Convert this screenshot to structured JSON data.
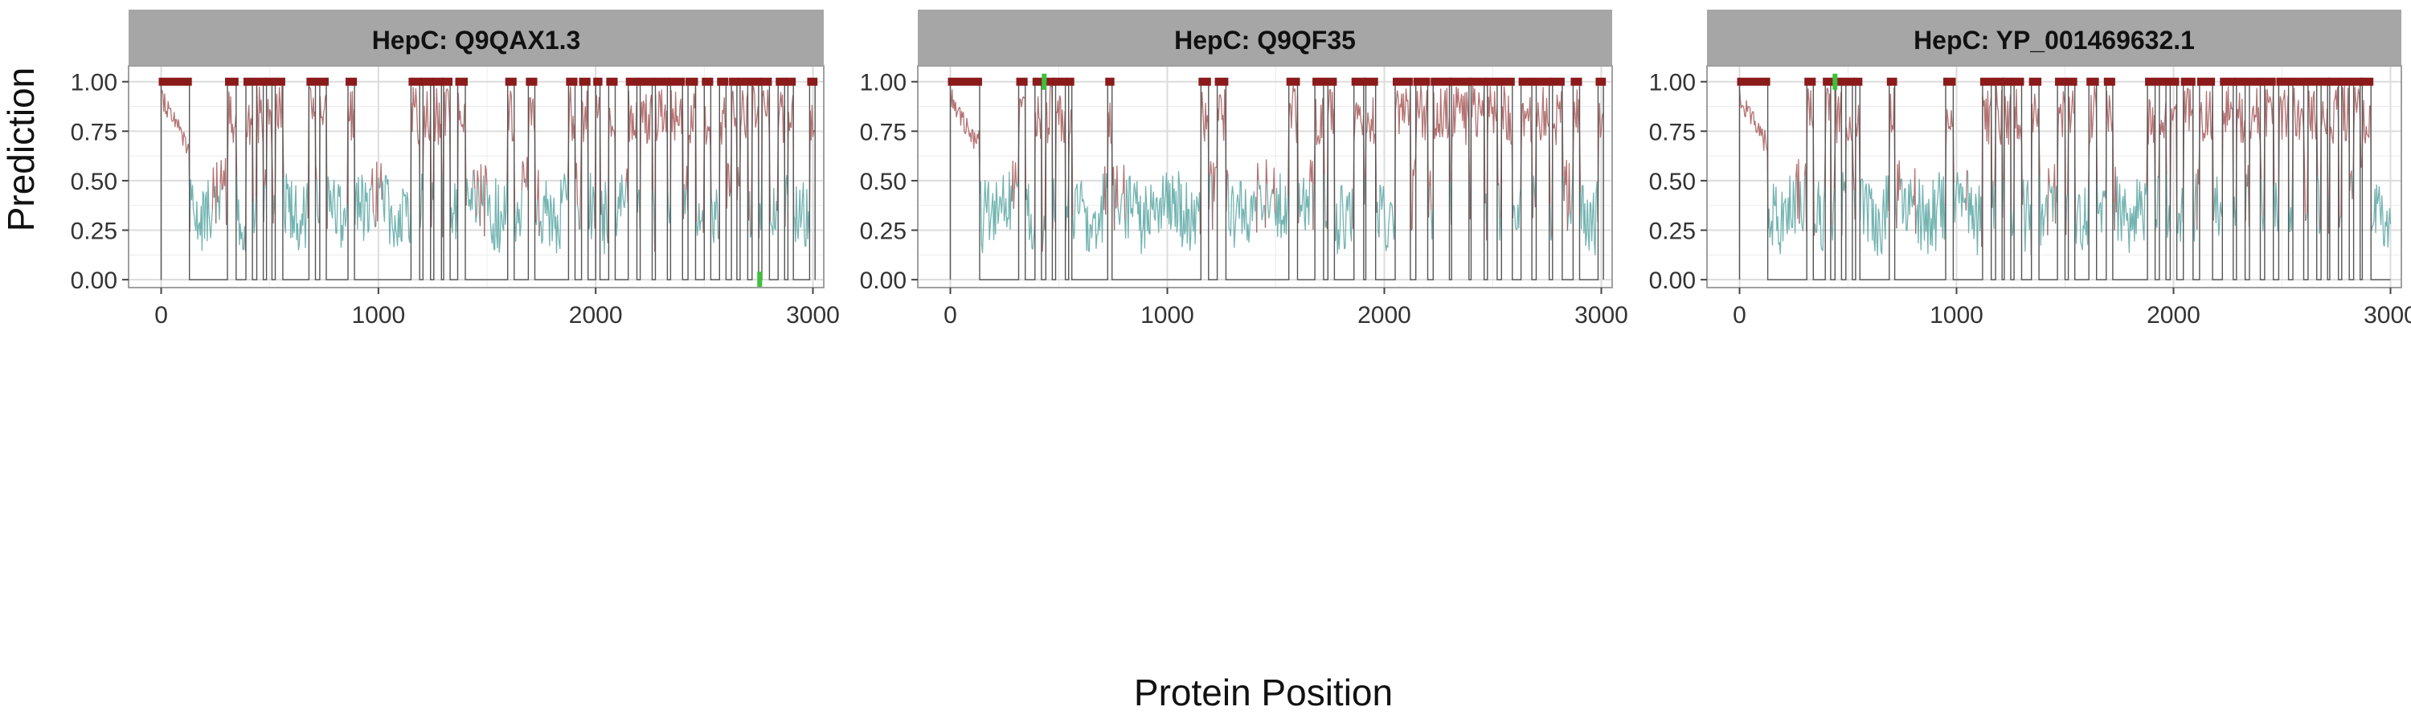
{
  "figure": {
    "ylabel": "Prediction",
    "xlabel": "Protein Position"
  },
  "colors": {
    "strip_bg": "#a6a6a6",
    "panel_border": "#a0a0a0",
    "grid": "#dcdcdc",
    "high_pred": "#a85a5a",
    "low_pred": "#5aa7a3",
    "epitope_marker": "#8b1a1a",
    "binary_trace": "#555555",
    "validated_marker": "#3cc13c",
    "text": "#222222"
  },
  "chart_data": [
    {
      "type": "line",
      "title": "HepC: Q9QAX1.3",
      "xlabel": "Protein Position",
      "ylabel": "Prediction",
      "xlim": [
        -150,
        3050
      ],
      "ylim": [
        -0.04,
        1.08
      ],
      "xticks": [
        0,
        1000,
        2000,
        3000
      ],
      "xtick_labels": [
        "0",
        "1000",
        "2000",
        "3000"
      ],
      "yticks": [
        0,
        0.25,
        0.5,
        0.75,
        1
      ],
      "ytick_labels": [
        "0.00",
        "0.25",
        "0.50",
        "0.75",
        "1.00"
      ],
      "grid": true,
      "sequence_length": 3010,
      "predicted_epitopes": [
        [
          0,
          130
        ],
        [
          305,
          345
        ],
        [
          390,
          420
        ],
        [
          440,
          470
        ],
        [
          485,
          510
        ],
        [
          525,
          560
        ],
        [
          680,
          710
        ],
        [
          730,
          760
        ],
        [
          860,
          890
        ],
        [
          1150,
          1190
        ],
        [
          1205,
          1240
        ],
        [
          1255,
          1290
        ],
        [
          1300,
          1330
        ],
        [
          1365,
          1400
        ],
        [
          1595,
          1625
        ],
        [
          1690,
          1720
        ],
        [
          1875,
          1905
        ],
        [
          1935,
          1965
        ],
        [
          2000,
          2020
        ],
        [
          2060,
          2090
        ],
        [
          2150,
          2190
        ],
        [
          2205,
          2260
        ],
        [
          2275,
          2330
        ],
        [
          2345,
          2400
        ],
        [
          2425,
          2460
        ],
        [
          2500,
          2530
        ],
        [
          2570,
          2600
        ],
        [
          2625,
          2650
        ],
        [
          2665,
          2700
        ],
        [
          2720,
          2750
        ],
        [
          2765,
          2800
        ],
        [
          2840,
          2870
        ],
        [
          2885,
          2910
        ],
        [
          2985,
          3010
        ]
      ],
      "validated_epitopes": [
        [
          2745,
          2765
        ]
      ]
    },
    {
      "type": "line",
      "title": "HepC: Q9QF35",
      "xlabel": "Protein Position",
      "ylabel": "Prediction",
      "xlim": [
        -150,
        3050
      ],
      "ylim": [
        -0.04,
        1.08
      ],
      "xticks": [
        0,
        1000,
        2000,
        3000
      ],
      "xtick_labels": [
        "0",
        "1000",
        "2000",
        "3000"
      ],
      "yticks": [
        0,
        0.25,
        0.5,
        0.75,
        1
      ],
      "ytick_labels": [
        "0.00",
        "0.25",
        "0.50",
        "0.75",
        "1.00"
      ],
      "grid": true,
      "sequence_length": 3010,
      "predicted_epitopes": [
        [
          0,
          135
        ],
        [
          315,
          345
        ],
        [
          390,
          420
        ],
        [
          440,
          470
        ],
        [
          485,
          530
        ],
        [
          545,
          560
        ],
        [
          725,
          745
        ],
        [
          1155,
          1190
        ],
        [
          1230,
          1270
        ],
        [
          1560,
          1600
        ],
        [
          1680,
          1720
        ],
        [
          1740,
          1770
        ],
        [
          1860,
          1905
        ],
        [
          1915,
          1960
        ],
        [
          2050,
          2120
        ],
        [
          2145,
          2200
        ],
        [
          2225,
          2300
        ],
        [
          2310,
          2390
        ],
        [
          2400,
          2460
        ],
        [
          2475,
          2520
        ],
        [
          2540,
          2590
        ],
        [
          2630,
          2680
        ],
        [
          2700,
          2760
        ],
        [
          2775,
          2820
        ],
        [
          2870,
          2900
        ],
        [
          2985,
          3010
        ]
      ],
      "validated_epitopes": [
        [
          420,
          445
        ]
      ]
    },
    {
      "type": "line",
      "title": "HepC: YP_001469632.1",
      "xlabel": "Protein Position",
      "ylabel": "Prediction",
      "xlim": [
        -150,
        3050
      ],
      "ylim": [
        -0.04,
        1.08
      ],
      "xticks": [
        0,
        1000,
        2000,
        3000
      ],
      "xtick_labels": [
        "0",
        "1000",
        "2000",
        "3000"
      ],
      "yticks": [
        0,
        0.25,
        0.5,
        0.75,
        1
      ],
      "ytick_labels": [
        "0.00",
        "0.25",
        "0.50",
        "0.75",
        "1.00"
      ],
      "grid": true,
      "sequence_length": 3000,
      "predicted_epitopes": [
        [
          0,
          130
        ],
        [
          310,
          340
        ],
        [
          395,
          420
        ],
        [
          440,
          470
        ],
        [
          490,
          520
        ],
        [
          535,
          555
        ],
        [
          690,
          715
        ],
        [
          950,
          985
        ],
        [
          1120,
          1160
        ],
        [
          1180,
          1210
        ],
        [
          1220,
          1250
        ],
        [
          1265,
          1300
        ],
        [
          1345,
          1380
        ],
        [
          1465,
          1500
        ],
        [
          1515,
          1545
        ],
        [
          1610,
          1645
        ],
        [
          1690,
          1720
        ],
        [
          1880,
          1915
        ],
        [
          1935,
          1965
        ],
        [
          1985,
          2015
        ],
        [
          2045,
          2090
        ],
        [
          2120,
          2180
        ],
        [
          2225,
          2275
        ],
        [
          2290,
          2330
        ],
        [
          2350,
          2400
        ],
        [
          2420,
          2460
        ],
        [
          2485,
          2530
        ],
        [
          2550,
          2600
        ],
        [
          2620,
          2660
        ],
        [
          2680,
          2710
        ],
        [
          2720,
          2760
        ],
        [
          2775,
          2810
        ],
        [
          2830,
          2860
        ],
        [
          2870,
          2910
        ]
      ],
      "validated_epitopes": [
        [
          430,
          450
        ]
      ]
    }
  ]
}
